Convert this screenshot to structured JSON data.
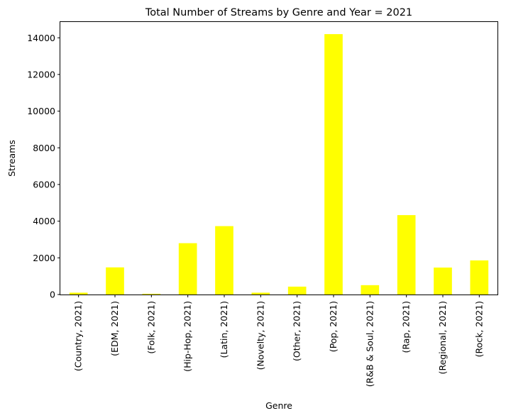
{
  "chart_data": {
    "type": "bar",
    "title": "Total Number of Streams by Genre and Year = 2021",
    "xlabel": "Genre",
    "ylabel": "Streams",
    "categories": [
      "(Country, 2021)",
      "(EDM, 2021)",
      "(Folk, 2021)",
      "(Hip-Hop, 2021)",
      "(Latin, 2021)",
      "(Novelty, 2021)",
      "(Other, 2021)",
      "(Pop, 2021)",
      "(R&B & Soul, 2021)",
      "(Rap, 2021)",
      "(Regional, 2021)",
      "(Rock, 2021)"
    ],
    "values": [
      100,
      1480,
      40,
      2800,
      3730,
      100,
      430,
      14200,
      510,
      4330,
      1470,
      1860
    ],
    "ylim": [
      0,
      14900
    ],
    "yticks": [
      0,
      2000,
      4000,
      6000,
      8000,
      10000,
      12000,
      14000
    ],
    "bar_color": "#ffff00",
    "grid": false,
    "legend": "none"
  }
}
